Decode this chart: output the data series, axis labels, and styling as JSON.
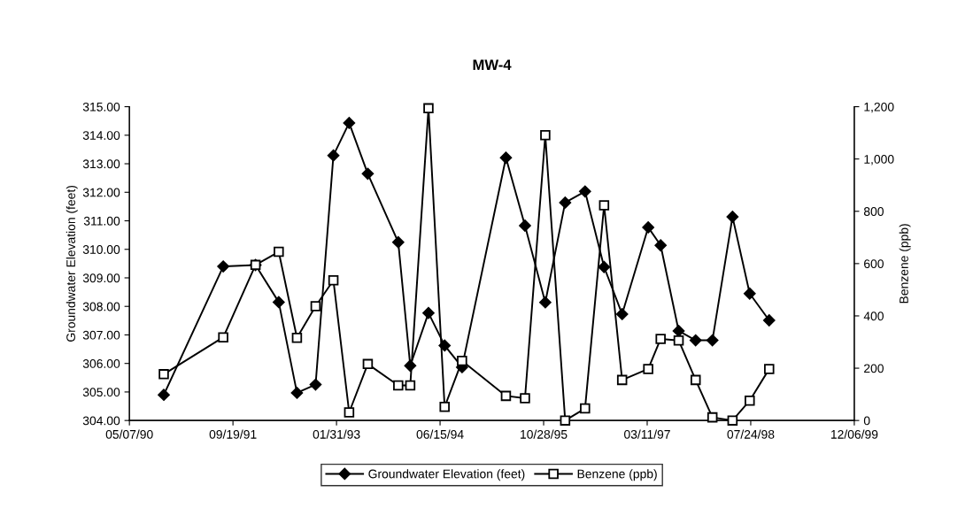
{
  "chart_data": {
    "type": "line",
    "title": "MW-4",
    "ylabel": "Groundwater Elevation (feet)",
    "y2label": "Benzene (ppb)",
    "x": [
      "1990-10-20",
      "1991-08-03",
      "1992-01-06",
      "1992-04-27",
      "1992-07-24",
      "1992-10-22",
      "1993-01-16",
      "1993-04-02",
      "1993-07-01",
      "1993-11-25",
      "1994-01-22",
      "1994-04-20",
      "1994-07-07",
      "1994-09-29",
      "1995-04-29",
      "1995-07-30",
      "1995-11-05",
      "1996-02-09",
      "1996-05-15",
      "1996-08-15",
      "1996-11-10",
      "1997-03-16",
      "1997-05-15",
      "1997-08-10",
      "1997-10-31",
      "1998-01-20",
      "1998-04-27",
      "1998-07-19",
      "1998-10-21"
    ],
    "series": [
      {
        "name": "Groundwater Elevation (feet)",
        "color": "#000000",
        "marker": "diamond",
        "values": [
          304.9,
          309.4,
          309.45,
          308.15,
          304.97,
          305.26,
          313.29,
          314.43,
          312.65,
          310.25,
          305.92,
          307.77,
          306.63,
          305.87,
          313.21,
          310.83,
          308.14,
          311.64,
          312.03,
          309.38,
          307.73,
          310.77,
          310.14,
          307.14,
          306.81,
          306.81,
          311.14,
          308.45,
          307.51
        ]
      },
      {
        "name": "Benzene (ppb)",
        "color": "#000000",
        "marker": "square",
        "axis": "y2",
        "values": [
          177,
          318,
          595,
          645,
          316,
          437,
          536,
          31,
          216,
          134,
          134,
          1194,
          52,
          228,
          94,
          85,
          1091,
          0,
          46,
          823,
          155,
          197,
          312,
          306,
          155,
          12,
          0,
          76,
          197
        ]
      }
    ],
    "xlim": [
      "1990-05-07",
      "1999-12-06"
    ],
    "xticks": [
      {
        "value": "1990-05-07",
        "label": "05/07/90"
      },
      {
        "value": "1991-09-19",
        "label": "09/19/91"
      },
      {
        "value": "1993-01-31",
        "label": "01/31/93"
      },
      {
        "value": "1994-06-15",
        "label": "06/15/94"
      },
      {
        "value": "1995-10-28",
        "label": "10/28/95"
      },
      {
        "value": "1997-03-11",
        "label": "03/11/97"
      },
      {
        "value": "1998-07-24",
        "label": "07/24/98"
      },
      {
        "value": "1999-12-06",
        "label": "12/06/99"
      }
    ],
    "ylim": [
      304,
      315
    ],
    "yticks": [
      {
        "value": 304,
        "label": "304.00"
      },
      {
        "value": 305,
        "label": "305.00"
      },
      {
        "value": 306,
        "label": "306.00"
      },
      {
        "value": 307,
        "label": "307.00"
      },
      {
        "value": 308,
        "label": "308.00"
      },
      {
        "value": 309,
        "label": "309.00"
      },
      {
        "value": 310,
        "label": "310.00"
      },
      {
        "value": 311,
        "label": "311.00"
      },
      {
        "value": 312,
        "label": "312.00"
      },
      {
        "value": 313,
        "label": "313.00"
      },
      {
        "value": 314,
        "label": "314.00"
      },
      {
        "value": 315,
        "label": "315.00"
      }
    ],
    "y2lim": [
      0,
      1200
    ],
    "y2ticks": [
      0,
      200,
      400,
      600,
      800,
      {
        "value": 1000,
        "label": "1,000"
      },
      {
        "value": 1200,
        "label": "1,200"
      }
    ],
    "legend": "bottom",
    "grid": false,
    "line_style": "solid"
  }
}
